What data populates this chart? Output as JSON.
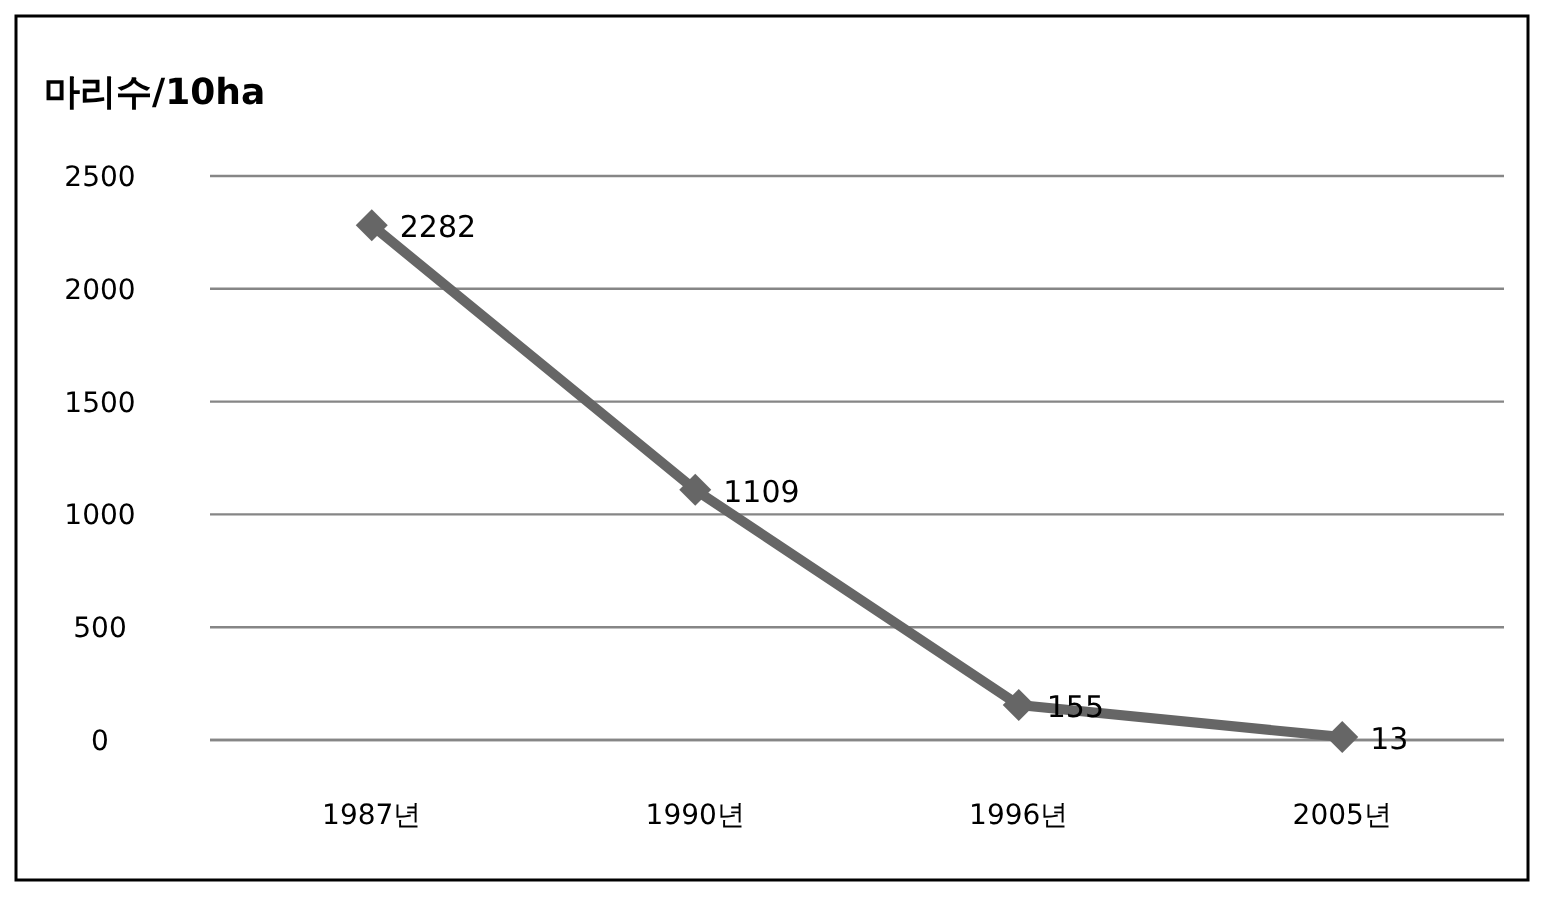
{
  "chart_data": {
    "type": "line",
    "title": "마리수/10ha",
    "categories": [
      "1987년",
      "1990년",
      "1996년",
      "2005년"
    ],
    "values": [
      2282,
      1109,
      155,
      13
    ],
    "color": "#666666",
    "ylim": [
      0,
      2500
    ],
    "yticks": [
      0,
      500,
      1000,
      1500,
      2000,
      2500
    ],
    "grid": "y",
    "marker": "diamond",
    "line_style": "solid",
    "data_labels": true
  }
}
